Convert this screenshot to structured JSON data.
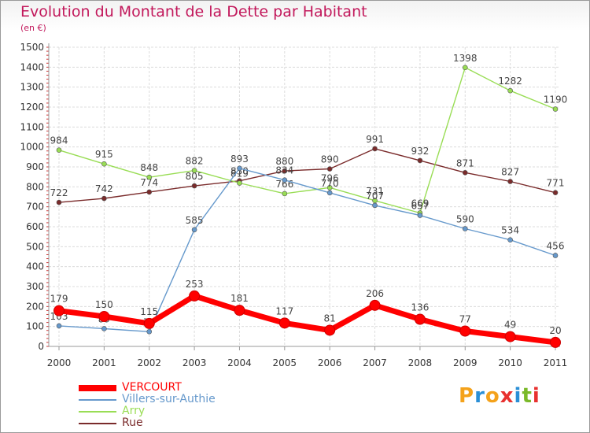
{
  "title": "Evolution du Montant de la Dette par Habitant",
  "unit": "(en €)",
  "logo_text": "Proxiti",
  "logo_colors": [
    "#f4a21b",
    "#2a8fd6",
    "#f4a21b",
    "#e8312f",
    "#2a8fd6",
    "#7ab929",
    "#e8312f"
  ],
  "chart_data": {
    "type": "line",
    "x": [
      2000,
      2001,
      2002,
      2003,
      2004,
      2005,
      2006,
      2007,
      2008,
      2009,
      2010,
      2011
    ],
    "ylim": [
      0,
      1500
    ],
    "yticks": [
      0,
      100,
      200,
      300,
      400,
      500,
      600,
      700,
      800,
      900,
      1000,
      1100,
      1200,
      1300,
      1400,
      1500
    ],
    "grid": true,
    "legend_position": "bottom-left",
    "series": [
      {
        "name": "VERCOURT",
        "color": "#ff0000",
        "values": [
          179,
          150,
          115,
          253,
          181,
          117,
          81,
          206,
          136,
          77,
          49,
          20
        ],
        "labels": [
          "179",
          "150",
          "115",
          "253",
          "181",
          "117",
          "81",
          "206",
          "136",
          "77",
          "49",
          "20"
        ]
      },
      {
        "name": "Villers-sur-Authie",
        "color": "#6699cc",
        "values": [
          103,
          89,
          74,
          585,
          893,
          834,
          770,
          707,
          657,
          590,
          534,
          456
        ],
        "labels": [
          "103",
          "89",
          "74",
          "585",
          "893",
          "834",
          "770",
          "707",
          "657",
          "590",
          "534",
          "456"
        ]
      },
      {
        "name": "Arry",
        "color": "#99dd55",
        "values": [
          984,
          915,
          848,
          882,
          819,
          766,
          796,
          731,
          669,
          1398,
          1282,
          1190
        ],
        "labels": [
          "984",
          "915",
          "848",
          "882",
          "819",
          "766",
          "796",
          "731",
          "669",
          "1398",
          "1282",
          "1190"
        ]
      },
      {
        "name": "Rue",
        "color": "#7a2b2b",
        "values": [
          722,
          742,
          774,
          805,
          830,
          880,
          890,
          991,
          932,
          871,
          827,
          771
        ],
        "labels": [
          "722",
          "742",
          "774",
          "805",
          "830",
          "880",
          "890",
          "991",
          "932",
          "871",
          "827",
          "771"
        ]
      }
    ]
  }
}
